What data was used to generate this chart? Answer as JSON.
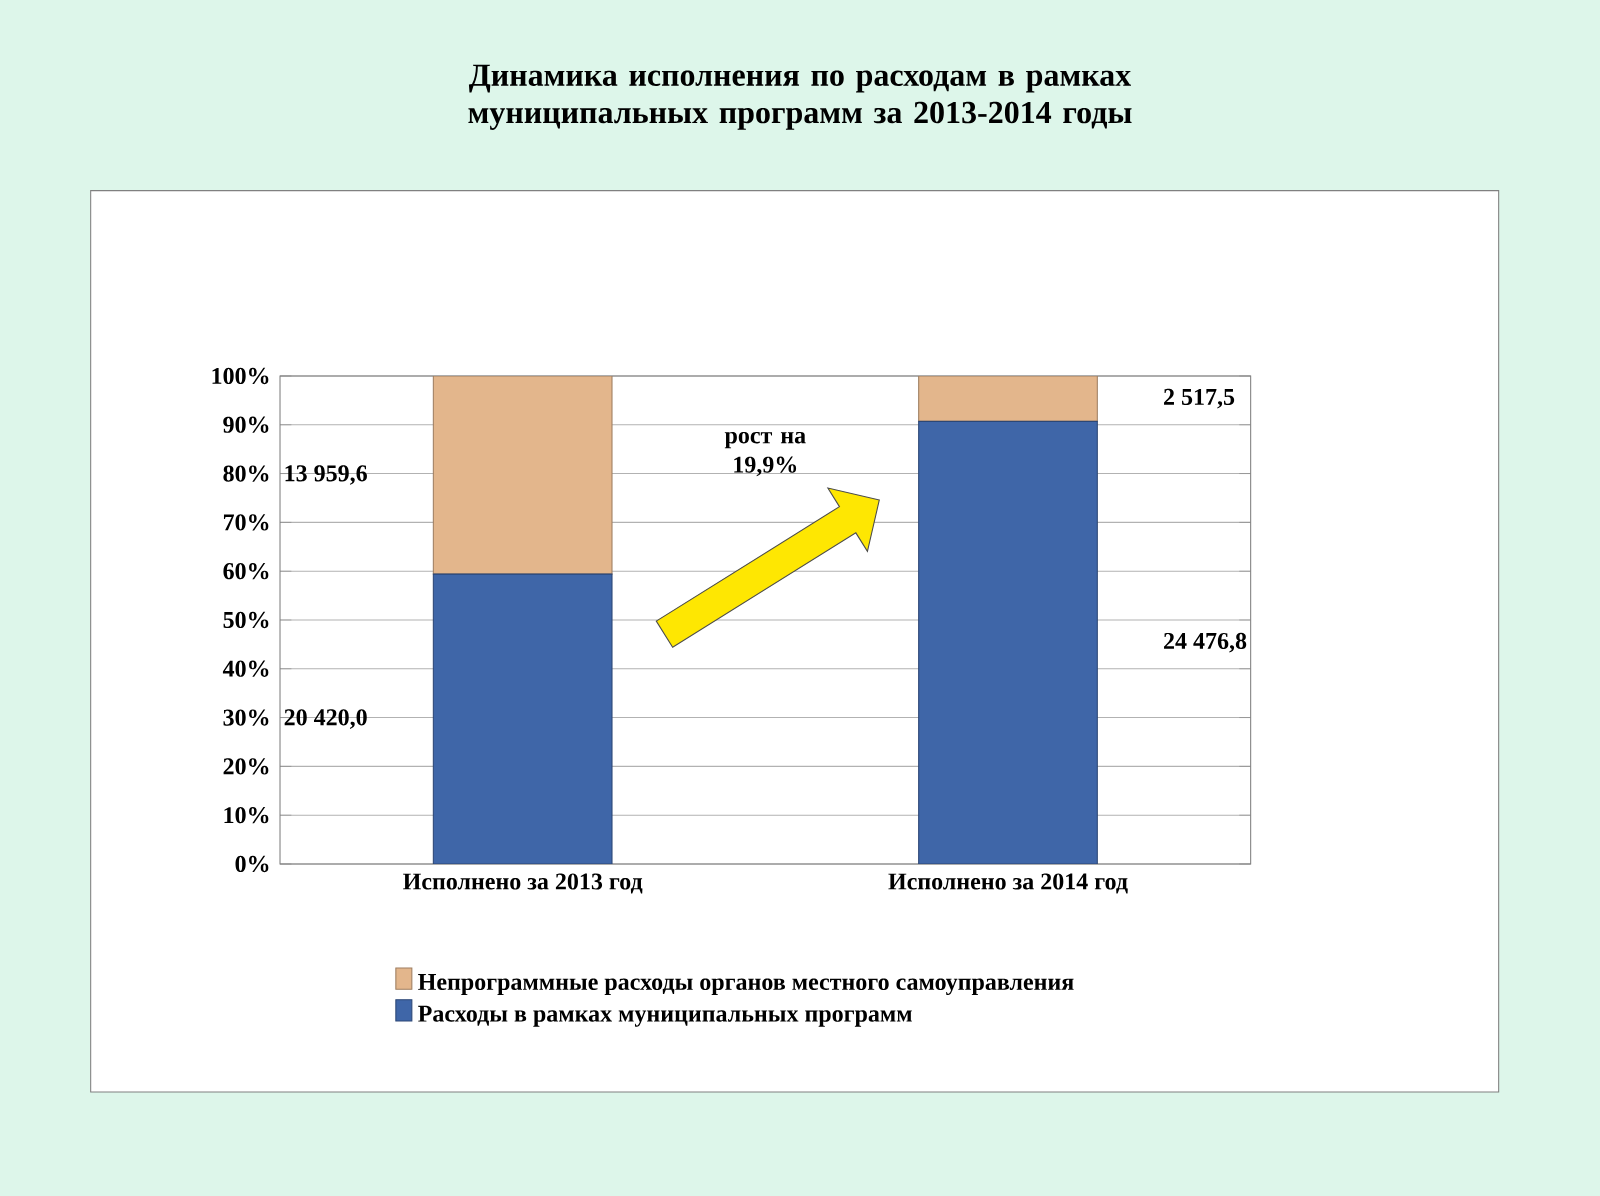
{
  "chart_data": {
    "type": "bar",
    "stacked": true,
    "title": "Динамика исполнения по расходам в рамках муниципальных программ за 2013-2014 годы",
    "categories": [
      "Исполнено за 2013 год",
      "Исполнено за 2014 год"
    ],
    "series": [
      {
        "name": "Расходы в рамках муниципальных программ",
        "color": "#3f66a8",
        "values": [
          59.4,
          90.7
        ]
      },
      {
        "name": "Непрограммные расходы органов местного самоуправления",
        "color": "#e3b68c",
        "values": [
          40.6,
          9.3
        ]
      }
    ],
    "ylim": [
      0,
      100
    ],
    "yticks": [
      {
        "value": 0,
        "label": "0%"
      },
      {
        "value": 10,
        "label": "10%"
      },
      {
        "value": 20,
        "label": "20%"
      },
      {
        "value": 30,
        "label": "30%"
      },
      {
        "value": 40,
        "label": "40%"
      },
      {
        "value": 50,
        "label": "50%"
      },
      {
        "value": 60,
        "label": "60%"
      },
      {
        "value": 70,
        "label": "70%"
      },
      {
        "value": 80,
        "label": "80%"
      },
      {
        "value": 90,
        "label": "90%"
      },
      {
        "value": 100,
        "label": "100%"
      }
    ],
    "grid": "y",
    "legend": "bottom",
    "annotations": [
      "рост на 19,9%",
      "20 420,0",
      "13 959,6",
      "24 476,8",
      "2 517,5"
    ]
  }
}
